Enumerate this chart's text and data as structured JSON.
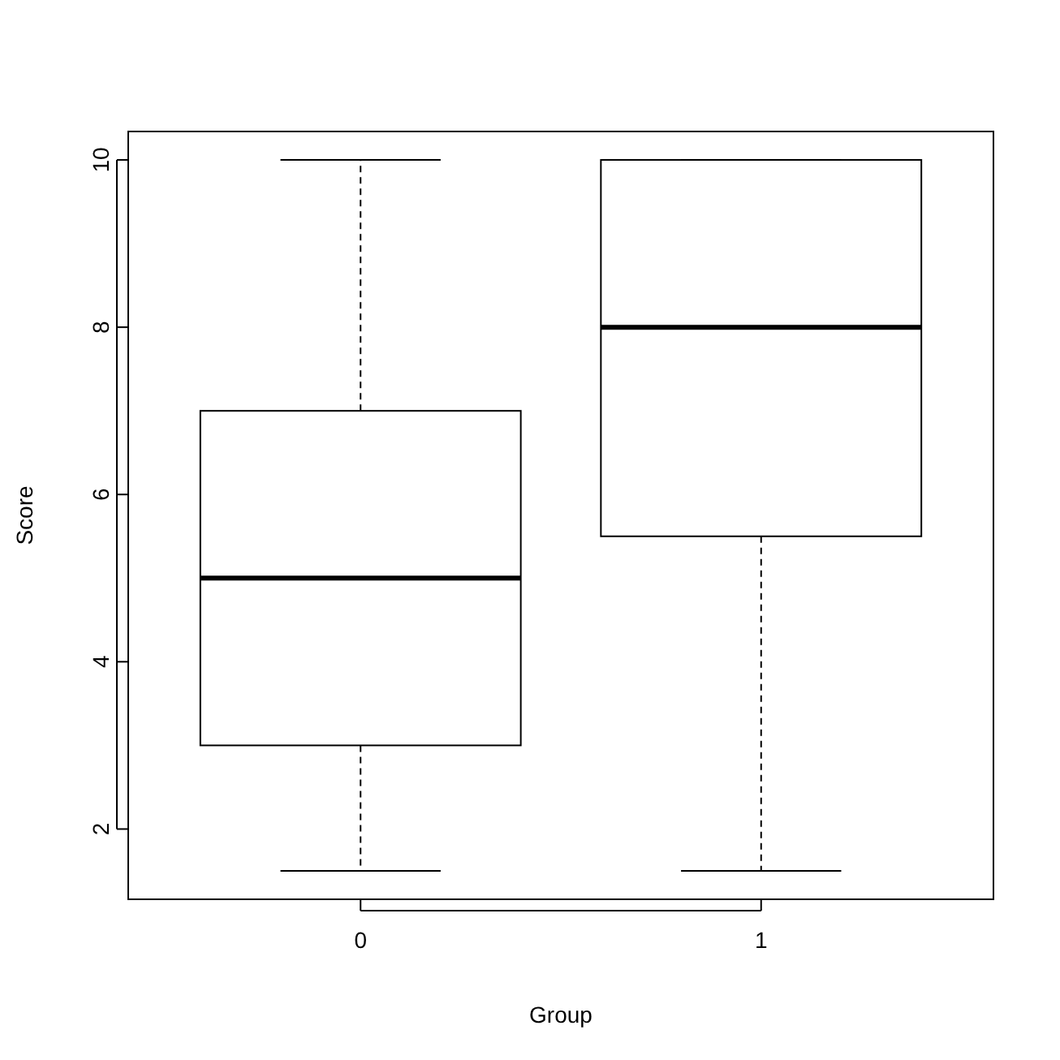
{
  "chart_data": {
    "type": "box",
    "xlabel": "Group",
    "ylabel": "Score",
    "categories": [
      "0",
      "1"
    ],
    "boxes": [
      {
        "low": 1.5,
        "q1": 3,
        "median": 5,
        "q3": 7,
        "high": 10
      },
      {
        "low": 1.5,
        "q1": 5.5,
        "median": 8,
        "q3": 10,
        "high": 10
      }
    ],
    "ylim": [
      1.16,
      10.34
    ],
    "yticks": [
      2,
      4,
      6,
      8,
      10
    ],
    "grid": false,
    "line_style": "dashed"
  }
}
